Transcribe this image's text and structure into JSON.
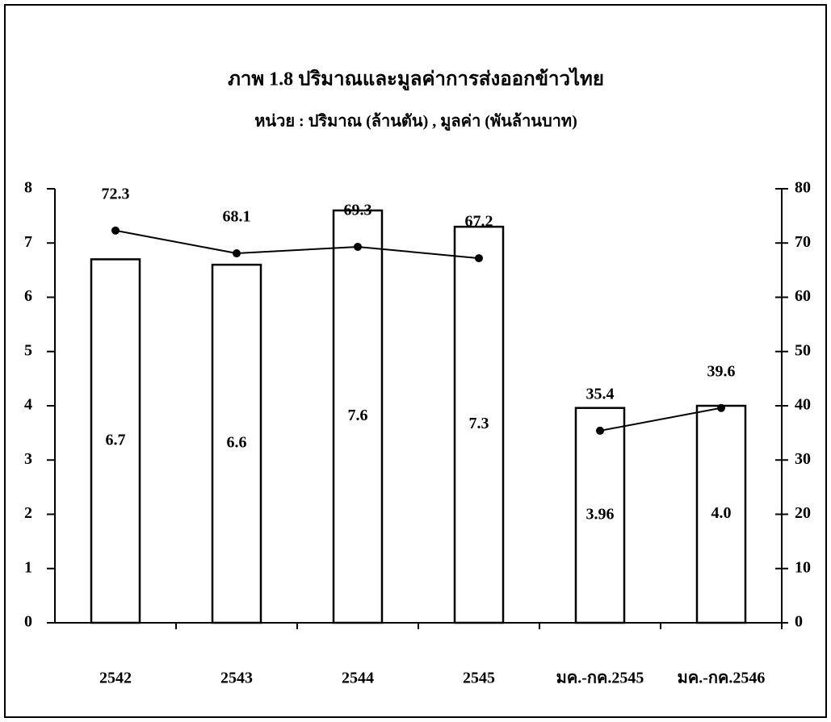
{
  "chart_data": {
    "type": "bar",
    "title": "ภาพ 1.8   ปริมาณและมูลค่าการส่งออกข้าวไทย",
    "subtitle": "หน่วย : ปริมาณ (ล้านตัน) ,  มูลค่า (พันล้านบาท)",
    "categories": [
      "2542",
      "2543",
      "2544",
      "2545",
      "มค.-กค.2545",
      "มค.-กค.2546"
    ],
    "series": [
      {
        "type": "bar",
        "color": "#ffffff",
        "values": [
          6.7,
          6.6,
          7.6,
          7.3,
          3.96,
          4.0
        ],
        "value_labels": [
          "6.7",
          "6.6",
          "7.6",
          "7.3",
          "3.96",
          "4.0"
        ]
      },
      {
        "type": "line",
        "axis": "y2",
        "color": "#000000",
        "values": [
          72.3,
          68.1,
          69.3,
          67.2,
          null,
          null
        ]
      },
      {
        "type": "line",
        "axis": "y2",
        "color": "#000000",
        "values": [
          null,
          null,
          null,
          null,
          35.4,
          39.6
        ]
      }
    ],
    "ylim": [
      0,
      8
    ],
    "yticks": [
      0,
      1,
      2,
      3,
      4,
      5,
      6,
      7,
      8
    ],
    "y2lim": [
      0,
      80
    ],
    "y2ticks": [
      0,
      10,
      20,
      30,
      40,
      50,
      60,
      70,
      80
    ]
  }
}
